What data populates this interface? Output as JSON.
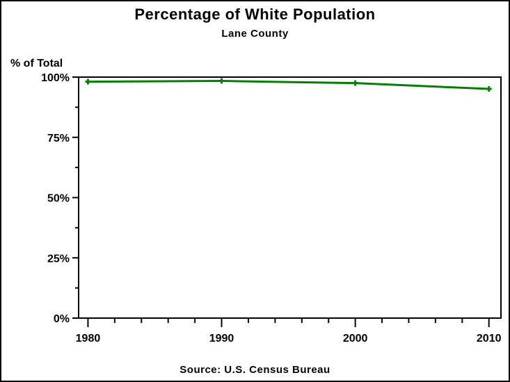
{
  "header": {
    "title": "Percentage of White Population",
    "subtitle": "Lane County"
  },
  "y_axis_label": "% of Total",
  "footer": {
    "source_note": "Source: U.S. Census Bureau"
  },
  "colors": {
    "line": "#008000",
    "axis": "#000000",
    "background": "#ffffff"
  },
  "chart_data": {
    "type": "line",
    "title": "Percentage of White Population",
    "subtitle": "Lane County",
    "xlabel": "",
    "ylabel": "% of Total",
    "footnote": "Source: U.S. Census Bureau",
    "x": [
      1980,
      1990,
      2000,
      2010
    ],
    "series": [
      {
        "name": "white-population-percent",
        "values": [
          98.1,
          98.4,
          97.5,
          95.1
        ],
        "color": "#008000",
        "marker": "plus",
        "line_width": 3
      }
    ],
    "xlim": [
      1979.3,
      2010.9
    ],
    "ylim": [
      0,
      100
    ],
    "x_ticks": [
      1980,
      1990,
      2000,
      2010
    ],
    "x_tick_labels": [
      "1980",
      "1990",
      "2000",
      "2010"
    ],
    "x_minor_step": 2,
    "y_ticks": [
      0,
      25,
      50,
      75,
      100
    ],
    "y_tick_labels": [
      "0%",
      "25%",
      "50%",
      "75%",
      "100%"
    ],
    "y_minor_step": 12.5,
    "grid": false,
    "frame": true,
    "legend": "none"
  }
}
